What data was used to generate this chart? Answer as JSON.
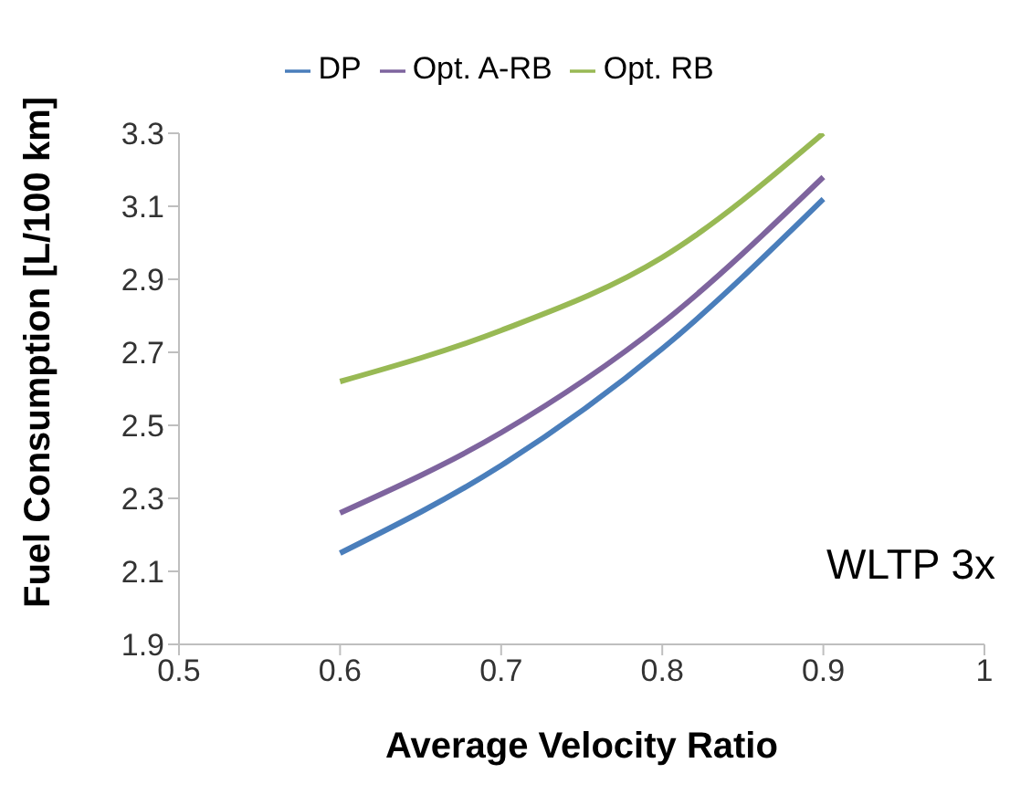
{
  "chart_data": {
    "type": "line",
    "xlabel": "Average Velocity Ratio",
    "ylabel": "Fuel Consumption [L/100 km]",
    "annotations": [
      "WLTP 3x"
    ],
    "x": [
      0.6,
      0.7,
      0.8,
      0.9
    ],
    "series": [
      {
        "name": "DP",
        "color": "#4a7ebb",
        "values": [
          2.15,
          2.39,
          2.71,
          3.12
        ]
      },
      {
        "name": "Opt. A-RB",
        "color": "#7e649e",
        "values": [
          2.26,
          2.48,
          2.78,
          3.18
        ]
      },
      {
        "name": "Opt. RB",
        "color": "#98b954",
        "values": [
          2.62,
          2.76,
          2.96,
          3.3
        ]
      }
    ],
    "xlim": [
      0.5,
      1
    ],
    "xticks": [
      0.5,
      0.6,
      0.7,
      0.8,
      0.9,
      1
    ],
    "ylim": [
      1.9,
      3.3
    ],
    "yticks": [
      1.9,
      2.1,
      2.3,
      2.5,
      2.7,
      2.9,
      3.1,
      3.3
    ],
    "legend": "top",
    "marker": "none",
    "line_style": "solid"
  }
}
